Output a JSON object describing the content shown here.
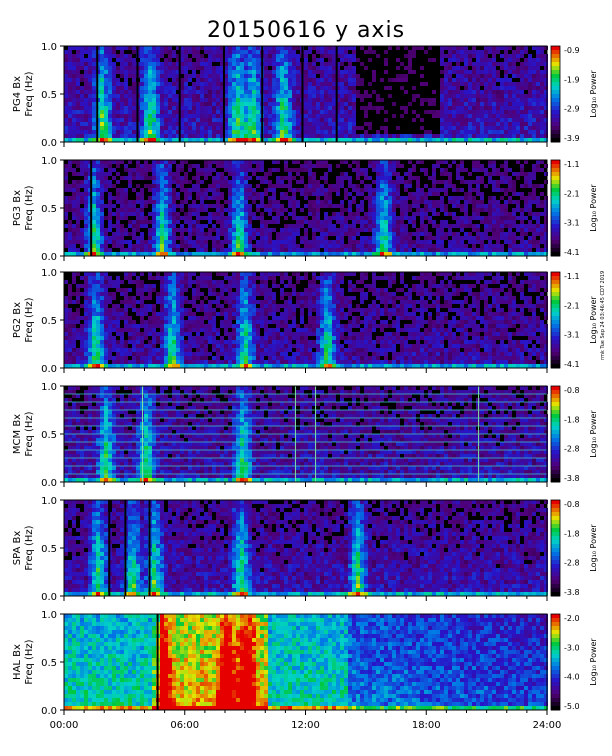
{
  "title": "20150616 y axis",
  "side_note": "rmk Tue Sep 24 03:46:45 CDT 2019",
  "chart_data": {
    "type": "heatmap",
    "title": "20150616 y axis",
    "x_tick_labels": [
      "00:00",
      "06:00",
      "12:00",
      "18:00",
      "24:00"
    ],
    "x_range_hours": [
      0,
      24
    ],
    "y_range_hz": [
      0,
      1
    ],
    "y_tick_labels": [
      "0.0",
      "0.5",
      "1.0"
    ],
    "colorbar_label": "Log₁₀ Power",
    "panels": [
      {
        "station": "PG4 Bx",
        "ylabel": "Freq (Hz)",
        "cbar_ticks": [
          "-0.9",
          "-1.9",
          "-2.9",
          "-3.9"
        ],
        "cbar_min": -3.9,
        "cbar_max": -0.9
      },
      {
        "station": "PG3 Bx",
        "ylabel": "Freq (Hz)",
        "cbar_ticks": [
          "-1.1",
          "-2.1",
          "-3.1",
          "-4.1"
        ],
        "cbar_min": -4.1,
        "cbar_max": -1.1
      },
      {
        "station": "PG2 Bx",
        "ylabel": "Freq (Hz)",
        "cbar_ticks": [
          "-1.1",
          "-2.1",
          "-3.1",
          "-4.1"
        ],
        "cbar_min": -4.1,
        "cbar_max": -1.1
      },
      {
        "station": "MCM Bx",
        "ylabel": "Freq (Hz)",
        "cbar_ticks": [
          "-0.8",
          "-1.8",
          "-2.8",
          "-3.8"
        ],
        "cbar_min": -3.8,
        "cbar_max": -0.8
      },
      {
        "station": "SPA Bx",
        "ylabel": "Freq (Hz)",
        "cbar_ticks": [
          "-0.8",
          "-1.8",
          "-2.8",
          "-3.8"
        ],
        "cbar_min": -3.8,
        "cbar_max": -0.8
      },
      {
        "station": "HAL Bx",
        "ylabel": "Freq (Hz)",
        "cbar_ticks": [
          "-2.0",
          "-3.0",
          "-4.0",
          "-5.0"
        ],
        "cbar_min": -5.0,
        "cbar_max": -2.0
      }
    ]
  }
}
